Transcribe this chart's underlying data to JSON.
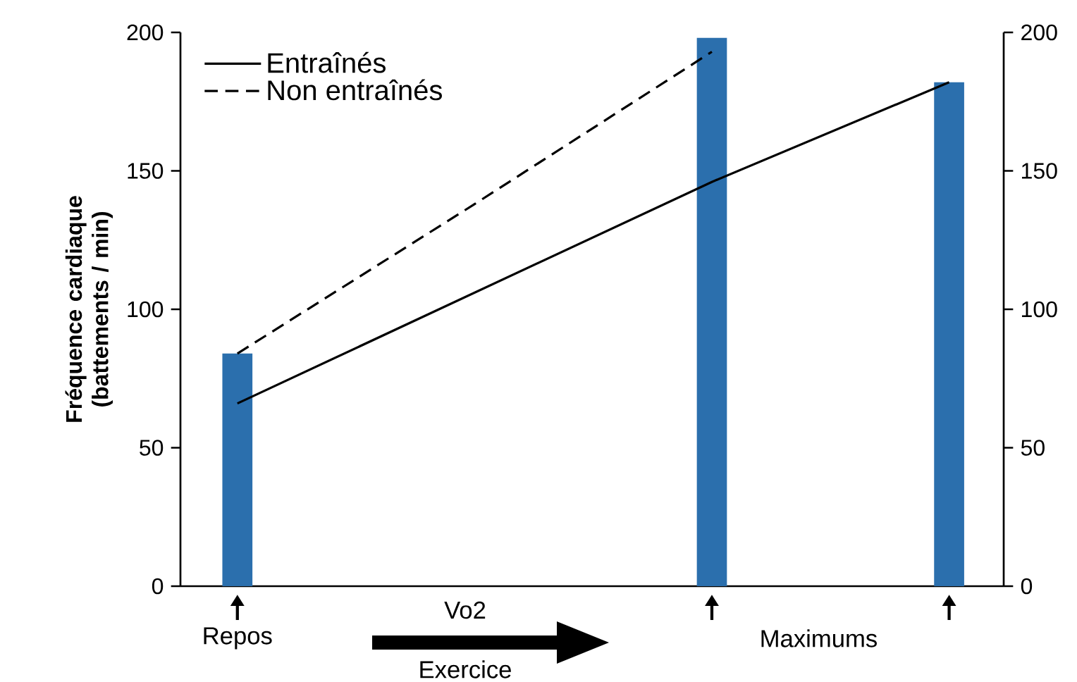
{
  "chart_data": {
    "type": "bar",
    "categories": [
      null,
      null,
      null,
      null
    ],
    "ylabel": "Fréquence cardiaque (battements / min)",
    "ylim": [
      0,
      200
    ],
    "yticks": [
      0,
      50,
      100,
      150,
      200
    ],
    "y2lim": [
      0,
      200
    ],
    "y2ticks": [
      0,
      50,
      100,
      150,
      200
    ],
    "legend": "top left",
    "grid": false,
    "annotations": [
      "Repos",
      "Vo2",
      "Exercice",
      "Maximums"
    ],
    "series": [
      {
        "color": "#2b6fad",
        "values": [
          84,
          null,
          198,
          182
        ]
      },
      {
        "type": "line",
        "name": "Entraînés",
        "color": "#000000",
        "line_style": "solid",
        "values": [
          66,
          106,
          146,
          182
        ]
      },
      {
        "type": "line",
        "name": "Non entraînés",
        "color": "#000000",
        "line_style": "dashed",
        "values": [
          84,
          138,
          193,
          null
        ]
      }
    ]
  }
}
